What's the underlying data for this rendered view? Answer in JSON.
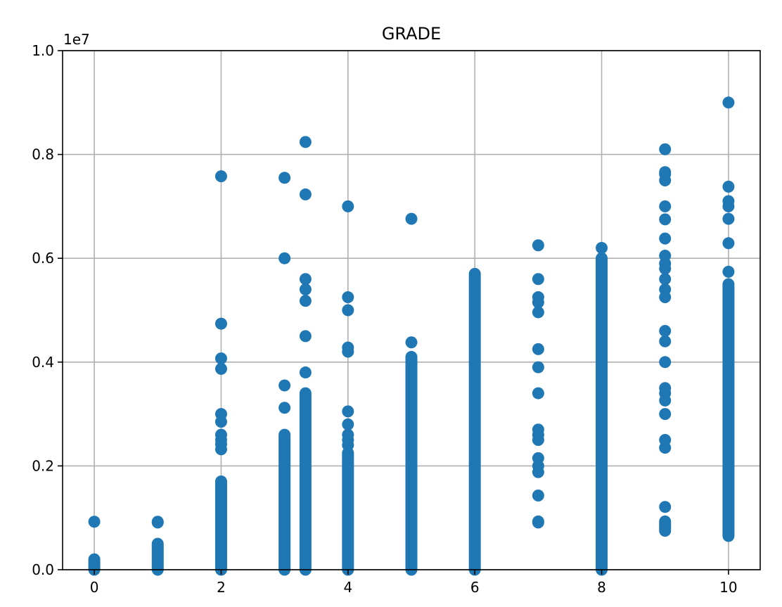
{
  "chart_data": {
    "type": "scatter",
    "title": "GRADE",
    "xlabel": "",
    "ylabel": "",
    "xlim": [
      -0.5,
      10.5
    ],
    "ylim": [
      0,
      10000000
    ],
    "y_offset_text": "1e7",
    "grid": true,
    "color": "#1f77b4",
    "xticks": [
      0,
      2,
      4,
      6,
      8,
      10
    ],
    "xtick_labels": [
      "0",
      "2",
      "4",
      "6",
      "8",
      "10"
    ],
    "yticks": [
      0,
      2000000,
      4000000,
      6000000,
      8000000,
      10000000
    ],
    "ytick_labels": [
      "0.0",
      "0.2",
      "0.4",
      "0.6",
      "0.8",
      "1.0"
    ],
    "columns": [
      {
        "x": 0,
        "range": [
          0,
          200000
        ],
        "points": [
          925000
        ]
      },
      {
        "x": 1,
        "range": [
          0,
          500000
        ],
        "points": [
          910000,
          925000
        ]
      },
      {
        "x": 2,
        "range": [
          0,
          1700000
        ],
        "points": [
          2320000,
          2420000,
          2500000,
          2600000,
          2850000,
          3000000,
          3870000,
          4070000,
          4740000,
          7580000
        ]
      },
      {
        "x": 3,
        "range": [
          0,
          2600000
        ],
        "points": [
          3120000,
          3550000,
          6000000,
          7550000
        ]
      },
      {
        "x": 3.33,
        "range": [
          0,
          3400000
        ],
        "points": [
          3800000,
          4500000,
          5180000,
          5400000,
          5600000,
          7230000,
          8240000
        ]
      },
      {
        "x": 4,
        "range": [
          0,
          2250000
        ],
        "points": [
          2400000,
          2500000,
          2600000,
          2800000,
          3050000,
          4200000,
          4280000,
          5000000,
          5250000,
          7000000
        ]
      },
      {
        "x": 5,
        "range": [
          0,
          4100000
        ],
        "points": [
          4380000,
          6760000
        ]
      },
      {
        "x": 6,
        "range": [
          0,
          5700000
        ],
        "points": []
      },
      {
        "x": 7,
        "range": [
          910000,
          930000
        ],
        "points": [
          1430000,
          1880000,
          2000000,
          2150000,
          2500000,
          2600000,
          2700000,
          3400000,
          3900000,
          4250000,
          4960000,
          5150000,
          5250000,
          5600000,
          6250000
        ]
      },
      {
        "x": 8,
        "range": [
          0,
          6000000
        ],
        "points": [
          50000,
          6200000
        ]
      },
      {
        "x": 9,
        "range": [
          750000,
          930000
        ],
        "points": [
          1210000,
          2350000,
          2500000,
          3000000,
          3260000,
          3400000,
          3500000,
          4000000,
          4400000,
          4600000,
          5250000,
          5400000,
          5600000,
          5800000,
          5900000,
          6050000,
          6380000,
          6750000,
          7000000,
          7500000,
          7620000,
          7660000,
          8100000
        ]
      },
      {
        "x": 10,
        "range": [
          650000,
          5500000
        ],
        "points": [
          5740000,
          6290000,
          6760000,
          7000000,
          7100000,
          7380000,
          9000000
        ]
      }
    ]
  }
}
